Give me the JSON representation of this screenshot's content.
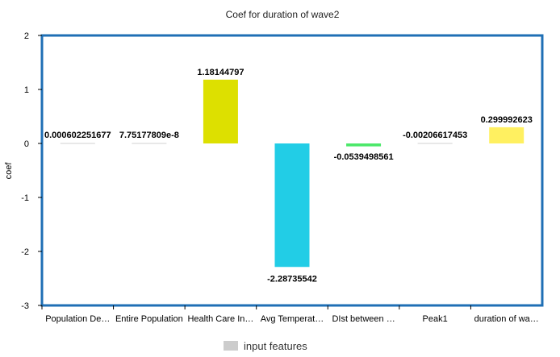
{
  "chart_data": {
    "type": "bar",
    "title": "Coef for duration of wave2",
    "xlabel": "",
    "ylabel": "coef",
    "ylim": [
      -3,
      2
    ],
    "yticks": [
      2,
      1,
      0,
      -1,
      -2,
      -3
    ],
    "grid": false,
    "legend_position": "bottom-center",
    "categories": [
      "Population De…",
      "Entire Population",
      "Health Care In…",
      "Avg Temperat…",
      "DIst between …",
      "Peak1",
      "duration of wa…"
    ],
    "series": [
      {
        "name": "input features",
        "values": [
          0.000602251677,
          7.75177809e-08,
          1.18144797,
          -2.28735542,
          -0.0539498561,
          -0.00206617453,
          0.299992623
        ],
        "labels": [
          "0.000602251677",
          "7.75177809e-8",
          "1.18144797",
          "-2.28735542",
          "-0.0539498561",
          "-0.00206617453",
          "0.299992623"
        ]
      }
    ],
    "bar_colors": [
      "#d0d0d0",
      "#d0d0d0",
      "#dde000",
      "#22cde6",
      "#4ce86a",
      "#d0d0d0",
      "#fff060"
    ],
    "legend_swatch_color": "#cccccc",
    "frame_color": "#1f6fb5"
  }
}
